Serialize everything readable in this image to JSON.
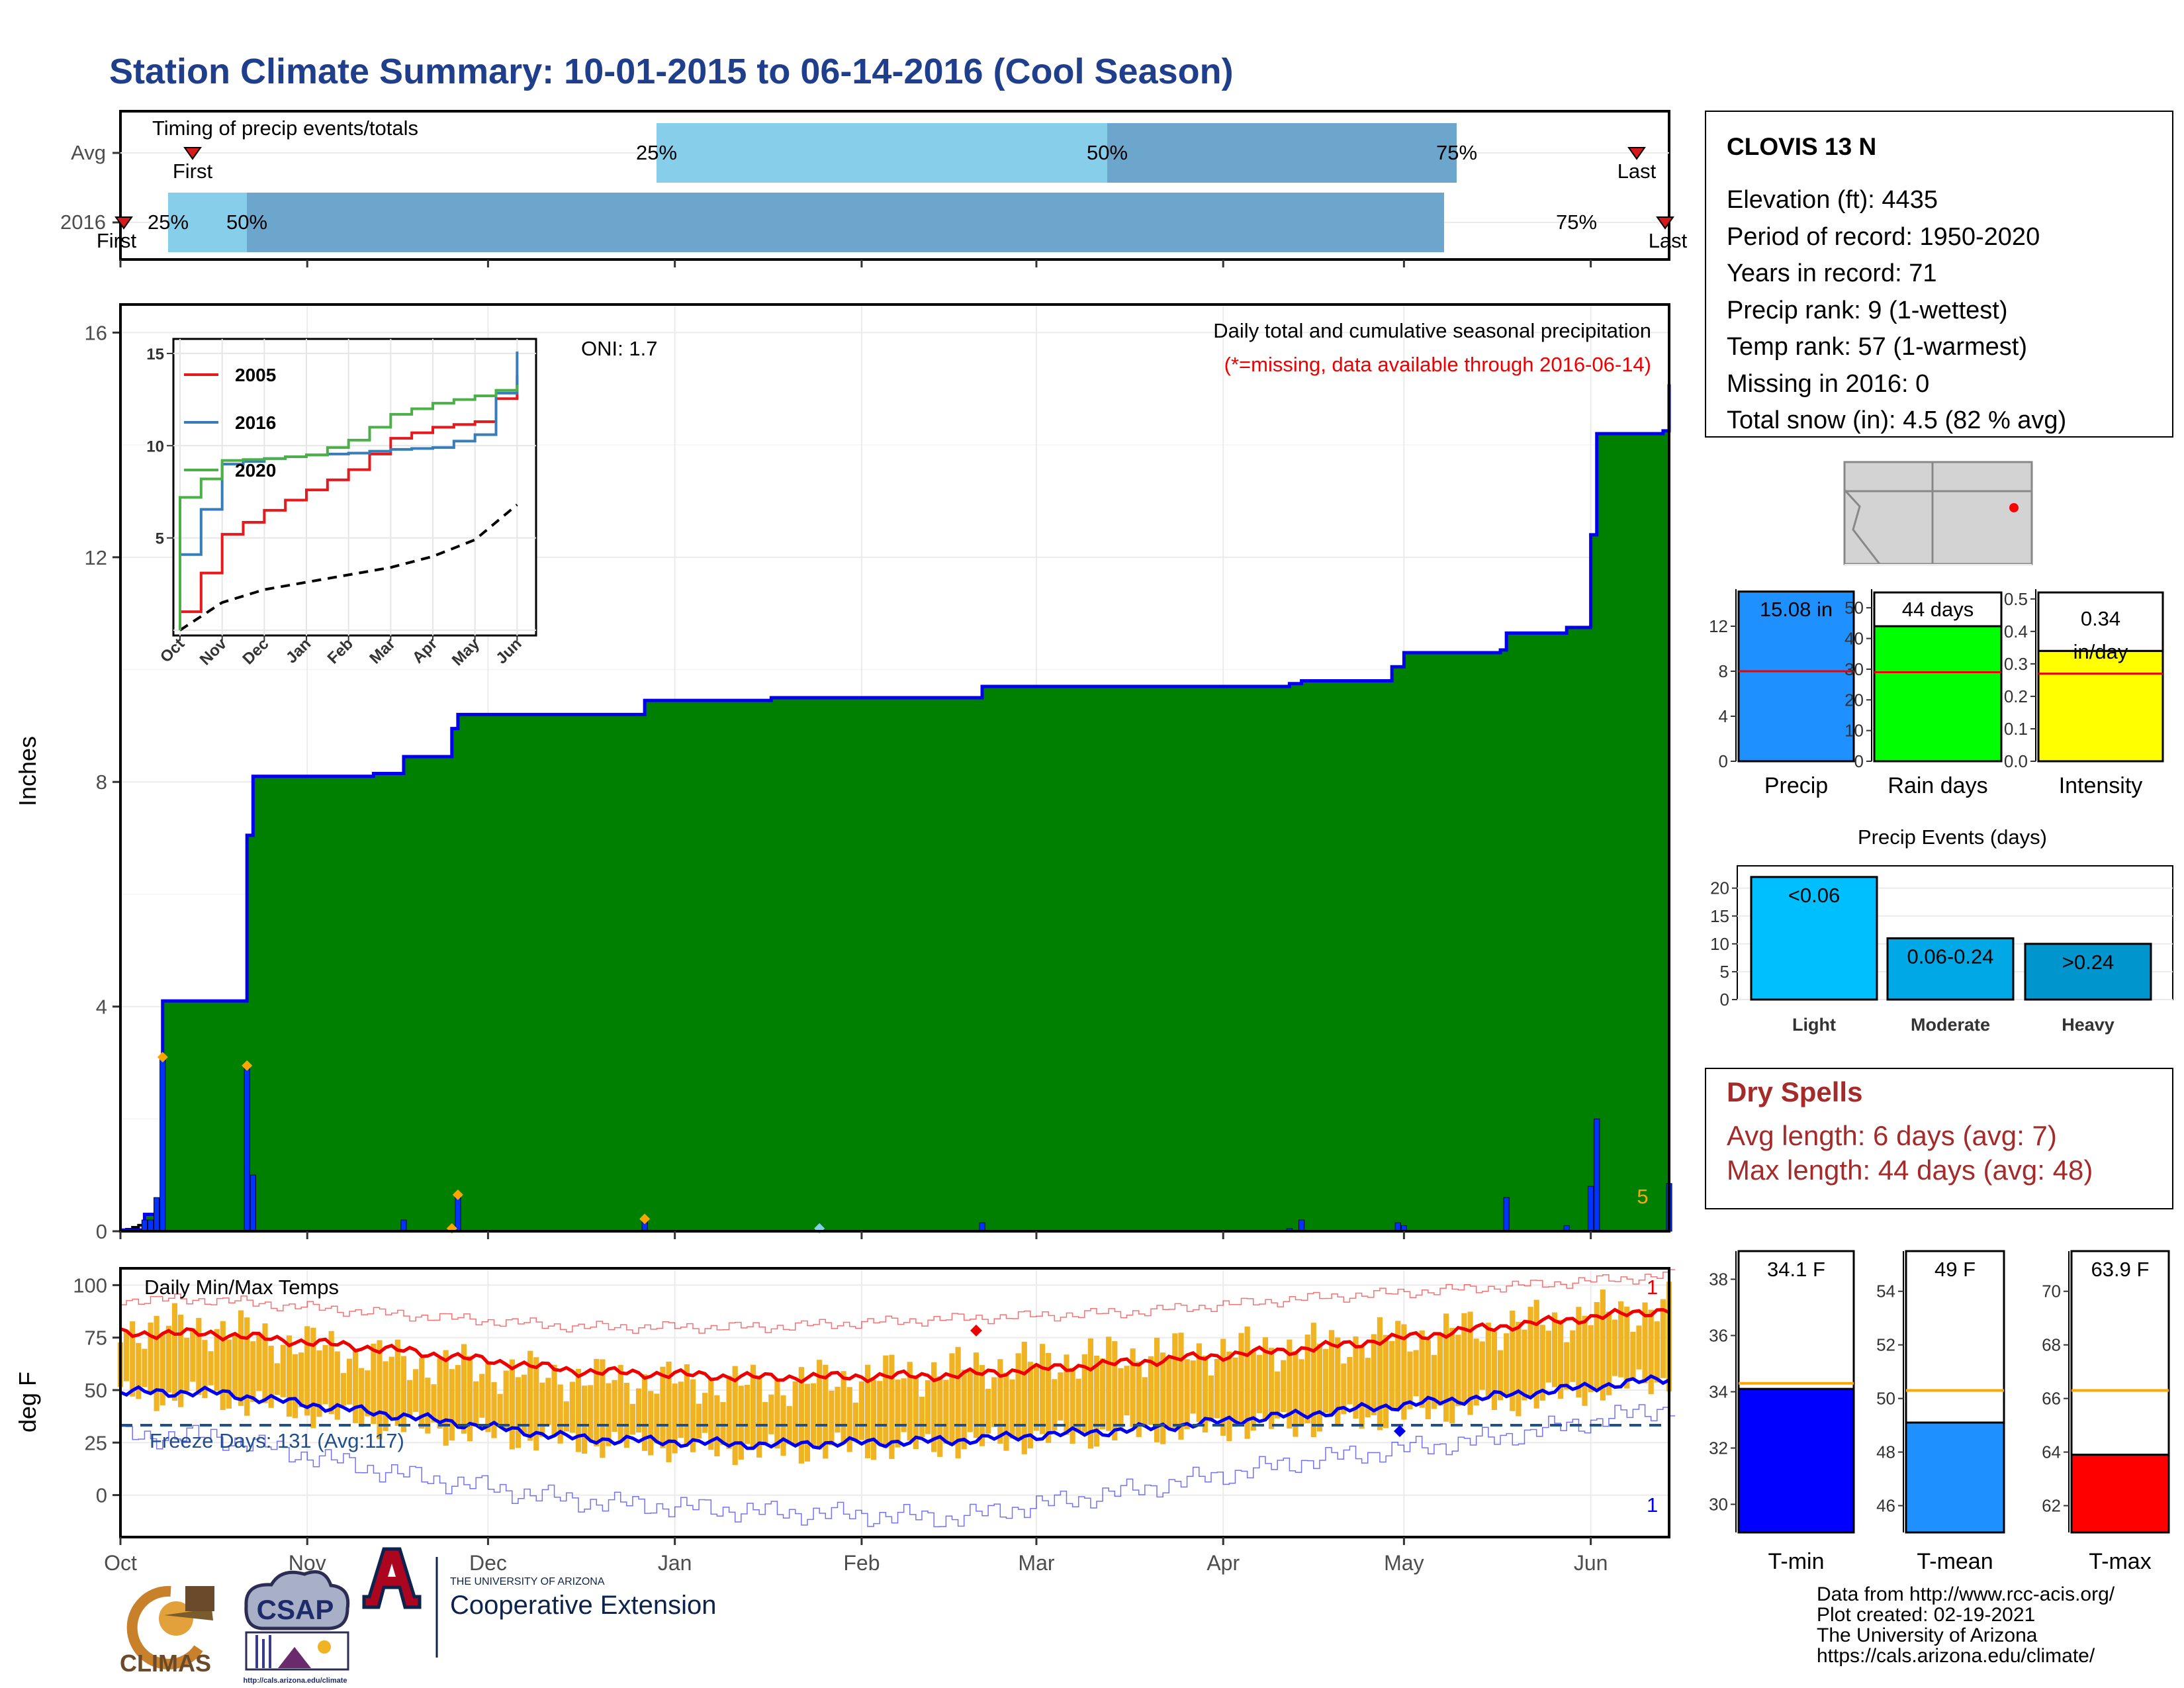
{
  "page": {
    "title": "Station Climate Summary: 10-01-2015 to 06-14-2016 (Cool Season)",
    "title_color": "#1F3E8C"
  },
  "timing": {
    "label": "Timing of precip events/totals",
    "rows": [
      "Avg",
      "2016"
    ],
    "avg": {
      "first_label": "First",
      "last_label": "Last",
      "p25": "25%",
      "p50": "50%",
      "p75": "75%"
    },
    "y2016": {
      "first_label": "First",
      "last_label": "Last",
      "p25": "25%",
      "p50": "50%",
      "p75": "75%"
    },
    "colors": {
      "light": "#87CEEB",
      "dark": "#6CA6CD",
      "marker": "#D7191C"
    }
  },
  "precip": {
    "ylabel": "Inches",
    "oni": "ONI: 1.7",
    "caption": "Daily total and cumulative seasonal precipitation",
    "missing_note": "(*=missing, data available through 2016-06-14)",
    "count_label": "5",
    "colors": {
      "fill": "#008000",
      "line": "#0000EE",
      "avg_fill": "#DEDEDE",
      "bar": "#0033FF",
      "dot": "#FFA500"
    }
  },
  "inset": {
    "legend": [
      {
        "name": "2005",
        "color": "#E41A1C"
      },
      {
        "name": "2016",
        "color": "#377EB8"
      },
      {
        "name": "2020",
        "color": "#4DAF4A"
      }
    ],
    "months": [
      "Oct",
      "Nov",
      "Dec",
      "Jan",
      "Feb",
      "Mar",
      "Apr",
      "May",
      "Jun"
    ],
    "yticks": [
      "5",
      "10",
      "15"
    ]
  },
  "temps": {
    "label": "Daily Min/Max Temps",
    "ylabel": "deg F",
    "freeze_text": "Freeze Days: 131 (Avg:117)",
    "top_count": "1",
    "bottom_count": "1",
    "colors": {
      "bar": "#F0B323",
      "max_line": "#EE0000",
      "min_line": "#0000EE",
      "freeze": "#1F4E8C"
    }
  },
  "months": [
    "Oct",
    "Nov",
    "Dec",
    "Jan",
    "Feb",
    "Mar",
    "Apr",
    "May",
    "Jun"
  ],
  "station": {
    "name": "CLOVIS 13 N",
    "lines": [
      "Elevation (ft): 4435",
      "Period of record: 1950-2020",
      "Years in record: 71",
      "Precip rank: 9 (1-wettest)",
      "Temp rank: 57 (1-warmest)",
      "Missing in 2016: 0",
      "Total snow (in): 4.5 (82 % avg)"
    ]
  },
  "summary_bars": [
    {
      "label": "Precip",
      "value_label": "15.08 in",
      "value": 15.08,
      "avg": 8,
      "ymax": 15,
      "ticks": [
        "0",
        "4",
        "8",
        "12"
      ],
      "tick_values": [
        0,
        4,
        8,
        12
      ],
      "color": "#1E90FF"
    },
    {
      "label": "Rain days",
      "value_label": "44 days",
      "value": 44,
      "avg": 29,
      "ymax": 55,
      "ticks": [
        "0",
        "10",
        "20",
        "30",
        "40",
        "50"
      ],
      "tick_values": [
        0,
        10,
        20,
        30,
        40,
        50
      ],
      "color": "#00FF00"
    },
    {
      "label": "Intensity",
      "value_label": "0.34 in/day",
      "value_label_a": "0.34",
      "value_label_b": "in/day",
      "value": 0.34,
      "avg": 0.27,
      "ymax": 0.52,
      "ticks": [
        "0.0",
        "0.1",
        "0.2",
        "0.3",
        "0.4",
        "0.5"
      ],
      "tick_values": [
        0,
        0.1,
        0.2,
        0.3,
        0.4,
        0.5
      ],
      "color": "#FFFF00"
    }
  ],
  "events": {
    "title": "Precip Events (days)",
    "categories": [
      "Light",
      "Moderate",
      "Heavy"
    ],
    "labels": [
      "<0.06",
      "0.06-0.24",
      ">0.24"
    ],
    "values": [
      22,
      11,
      10
    ],
    "ticks": [
      "0",
      "5",
      "10",
      "15",
      "20"
    ],
    "colors": [
      "#00BFFF",
      "#00A9E6",
      "#0095CC"
    ]
  },
  "dry": {
    "title": "Dry Spells",
    "avg_line": "Avg length: 6 days (avg: 7)",
    "max_line": "Max length: 44 days (avg: 48)",
    "color": "#A52A2A"
  },
  "temp_bars": [
    {
      "label": "T-min",
      "value_label": "34.1 F",
      "value": 34.1,
      "avg": 34.3,
      "ymin": 29,
      "ymax": 39,
      "ticks": [
        "30",
        "32",
        "34",
        "36",
        "38"
      ],
      "tick_values": [
        30,
        32,
        34,
        36,
        38
      ],
      "color": "#0000FF"
    },
    {
      "label": "T-mean",
      "value_label": "49 F",
      "value": 49.1,
      "avg": 50.3,
      "ymin": 45,
      "ymax": 55.5,
      "ticks": [
        "46",
        "48",
        "50",
        "52",
        "54"
      ],
      "tick_values": [
        46,
        48,
        50,
        52,
        54
      ],
      "color": "#1E90FF"
    },
    {
      "label": "T-max",
      "value_label": "63.9 F",
      "value": 63.9,
      "avg": 66.3,
      "ymin": 61,
      "ymax": 71.5,
      "ticks": [
        "62",
        "64",
        "66",
        "68",
        "70"
      ],
      "tick_values": [
        62,
        64,
        66,
        68,
        70
      ],
      "color": "#FF0000"
    }
  ],
  "credits": [
    "Data from http://www.rcc-acis.org/",
    "Plot created: 02-19-2021",
    "The University of Arizona",
    "https://cals.arizona.edu/climate/"
  ],
  "logos": {
    "climas": "CLIMAS",
    "csap": "CSAP",
    "csap_url": "http://cals.arizona.edu/climate",
    "ua_line1": "THE UNIVERSITY OF ARIZONA",
    "ua_line2": "Cooperative Extension"
  },
  "chart_data": [
    {
      "type": "bar",
      "title": "Timing of precip events/totals",
      "categories": [
        "Avg",
        "2016"
      ],
      "series": [
        {
          "name": "Avg",
          "values": {
            "first": "2015-10-12",
            "p25": "2015-12-28",
            "p50": "2016-03-14",
            "p75": "2016-05-15",
            "last": "2016-06-10"
          }
        },
        {
          "name": "2016",
          "values": {
            "first": "2015-10-01",
            "p25": "2015-10-09",
            "p50": "2015-10-22",
            "p75": "2016-06-03",
            "last": "2016-06-14"
          }
        }
      ]
    },
    {
      "type": "area",
      "title": "Daily total and cumulative seasonal precipitation",
      "ylabel": "Inches",
      "ylim": [
        0,
        16.5
      ],
      "x_range": [
        "2015-10-01",
        "2016-06-14"
      ],
      "series": [
        {
          "name": "2016",
          "points": [
            [
              "2015-10-01",
              0.02
            ],
            [
              "2015-10-05",
              0.3
            ],
            [
              "2015-10-07",
              0.55
            ],
            [
              "2015-10-08",
              4.1
            ],
            [
              "2015-10-21",
              4.1
            ],
            [
              "2015-10-22",
              7.05
            ],
            [
              "2015-10-23",
              8.1
            ],
            [
              "2015-11-12",
              8.15
            ],
            [
              "2015-11-17",
              8.45
            ],
            [
              "2015-11-25",
              8.95
            ],
            [
              "2015-11-26",
              9.2
            ],
            [
              "2015-12-27",
              9.45
            ],
            [
              "2016-01-17",
              9.5
            ],
            [
              "2016-02-21",
              9.7
            ],
            [
              "2016-04-12",
              9.75
            ],
            [
              "2016-04-14",
              9.8
            ],
            [
              "2016-04-29",
              10.05
            ],
            [
              "2016-05-01",
              10.3
            ],
            [
              "2016-05-17",
              10.35
            ],
            [
              "2016-05-18",
              10.65
            ],
            [
              "2016-05-28",
              10.75
            ],
            [
              "2016-06-01",
              12.4
            ],
            [
              "2016-06-02",
              14.2
            ],
            [
              "2016-06-13",
              14.25
            ],
            [
              "2016-06-14",
              15.08
            ]
          ]
        },
        {
          "name": "Avg",
          "points": [
            [
              "2015-10-01",
              0
            ],
            [
              "2015-10-15",
              0.5
            ],
            [
              "2015-11-01",
              1.5
            ],
            [
              "2015-11-15",
              2.0
            ],
            [
              "2015-12-01",
              2.25
            ],
            [
              "2015-12-15",
              2.45
            ],
            [
              "2016-01-01",
              2.65
            ],
            [
              "2016-02-01",
              3.0
            ],
            [
              "2016-03-01",
              3.4
            ],
            [
              "2016-04-01",
              4.0
            ],
            [
              "2016-05-01",
              4.9
            ],
            [
              "2016-05-15",
              5.6
            ],
            [
              "2016-06-01",
              6.9
            ],
            [
              "2016-06-14",
              7.85
            ]
          ]
        }
      ],
      "daily_bars": [
        [
          "2015-10-05",
          0.2
        ],
        [
          "2015-10-06",
          0.2
        ],
        [
          "2015-10-07",
          0.6
        ],
        [
          "2015-10-08",
          3.1
        ],
        [
          "2015-10-22",
          2.95
        ],
        [
          "2015-10-23",
          1.0
        ],
        [
          "2015-11-17",
          0.2
        ],
        [
          "2015-11-26",
          0.6
        ],
        [
          "2015-12-27",
          0.2
        ],
        [
          "2016-02-21",
          0.15
        ],
        [
          "2016-04-12",
          0.05
        ],
        [
          "2016-04-14",
          0.2
        ],
        [
          "2016-04-30",
          0.15
        ],
        [
          "2016-05-01",
          0.1
        ],
        [
          "2016-05-18",
          0.6
        ],
        [
          "2016-05-28",
          0.1
        ],
        [
          "2016-06-01",
          0.8
        ],
        [
          "2016-06-02",
          2.0
        ],
        [
          "2016-06-14",
          0.85
        ]
      ]
    },
    {
      "type": "line",
      "title": "",
      "xlabel": "",
      "ylabel": "",
      "x": [
        "Oct",
        "Nov",
        "Dec",
        "Jan",
        "Feb",
        "Mar",
        "Apr",
        "May",
        "Jun"
      ],
      "ylim": [
        0,
        15.5
      ],
      "series": [
        {
          "name": "2005",
          "values": [
            1.0,
            5.2,
            6.5,
            7.6,
            8.7,
            10.4,
            11.0,
            11.3,
            13.8
          ]
        },
        {
          "name": "2016",
          "values": [
            4.1,
            9.0,
            9.3,
            9.5,
            9.6,
            9.8,
            9.9,
            10.6,
            15.1
          ]
        },
        {
          "name": "2020",
          "values": [
            7.2,
            9.2,
            9.3,
            9.5,
            10.3,
            11.7,
            12.3,
            12.7,
            13.3
          ]
        },
        {
          "name": "Avg",
          "values": [
            0.0,
            1.5,
            2.2,
            2.6,
            3.0,
            3.4,
            4.0,
            4.9,
            6.8
          ]
        }
      ]
    },
    {
      "type": "bar",
      "title": "Daily Min/Max Temps",
      "ylabel": "deg F",
      "ylim": [
        -20,
        108
      ],
      "x": [
        "Oct",
        "Nov",
        "Dec",
        "Jan",
        "Feb",
        "Mar",
        "Apr",
        "May",
        "Jun"
      ],
      "series": [
        {
          "name": "Avg max",
          "values": [
            77,
            69,
            59,
            56,
            57,
            63,
            70,
            80,
            89
          ]
        },
        {
          "name": "Avg min",
          "values": [
            49,
            38,
            27,
            24,
            26,
            31,
            39,
            47,
            56
          ]
        },
        {
          "name": "Record high",
          "values": [
            93,
            86,
            80,
            80,
            84,
            87,
            94,
            99,
            105
          ]
        },
        {
          "name": "Record low",
          "values": [
            28,
            10,
            -3,
            -8,
            -11,
            2,
            17,
            27,
            43
          ]
        },
        {
          "name": "Daily max",
          "values": [
            80,
            64,
            56,
            52,
            60,
            67,
            71,
            80,
            91
          ]
        },
        {
          "name": "Daily min",
          "values": [
            47,
            33,
            25,
            21,
            24,
            30,
            34,
            43,
            56
          ]
        }
      ]
    },
    {
      "type": "bar",
      "categories": [
        "Precip",
        "Rain days",
        "Intensity"
      ],
      "values": [
        15.08,
        44,
        0.34
      ]
    },
    {
      "type": "bar",
      "title": "Precip Events (days)",
      "categories": [
        "Light",
        "Moderate",
        "Heavy"
      ],
      "values": [
        22,
        11,
        10
      ]
    },
    {
      "type": "bar",
      "categories": [
        "T-min",
        "T-mean",
        "T-max"
      ],
      "values": [
        34.1,
        49.1,
        63.9
      ]
    }
  ]
}
